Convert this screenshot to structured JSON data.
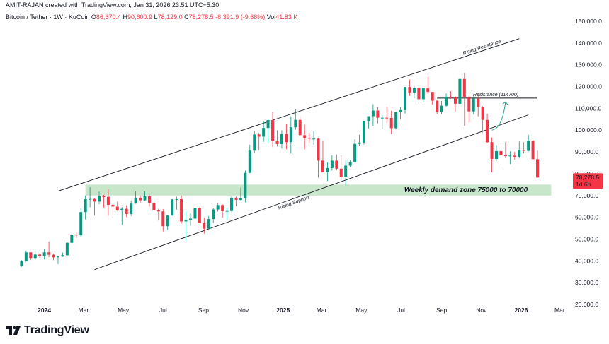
{
  "header": {
    "created_by": "AMIT-RAJAN created with TradingView.com, Jan 31, 2026 23:51 UTC+5:30"
  },
  "symbol": {
    "name": "Bitcoin / Tether · 1W · KuCoin",
    "open_label": "O",
    "open": "86,670.4",
    "high_label": "H",
    "high": "90,600.9",
    "low_label": "L",
    "low": "78,129.0",
    "close_label": "C",
    "close": "78,278.5",
    "change": "-8,391.9 (-9.68%)",
    "vol_label": "Vol",
    "vol": "41.83 K"
  },
  "price_tag": {
    "price": "78,278.5",
    "countdown": "1d 6h",
    "value": 78278.5
  },
  "colors": {
    "up": "#089981",
    "down": "#f23645",
    "zone": "#c8e6c9",
    "line": "#131722",
    "accent": "#089981"
  },
  "logo": {
    "text": "TradingView",
    "icon": "tradingview-logo-icon"
  },
  "chart_data": {
    "type": "candlestick",
    "interval": "1W",
    "ylim": [
      20000,
      150000
    ],
    "y_scale": "linear",
    "yticks": [
      {
        "value": 20000,
        "label": "20,000.0"
      },
      {
        "value": 30000,
        "label": "30,000.0"
      },
      {
        "value": 40000,
        "label": "40,000.0"
      },
      {
        "value": 50000,
        "label": "50,000.0"
      },
      {
        "value": 60000,
        "label": "60,000.0"
      },
      {
        "value": 70000,
        "label": "70,000.0"
      },
      {
        "value": 80000,
        "label": "80,000.0"
      },
      {
        "value": 90000,
        "label": "90,000.0"
      },
      {
        "value": 100000,
        "label": "100,000.0"
      },
      {
        "value": 110000,
        "label": "110,000.0"
      },
      {
        "value": 120000,
        "label": "120,000.0"
      },
      {
        "value": 130000,
        "label": "130,000.0"
      },
      {
        "value": 140000,
        "label": "140,000.0"
      },
      {
        "value": 150000,
        "label": "150,000.0"
      }
    ],
    "xticks": [
      {
        "date": "2024-01-01",
        "label": "2024",
        "bold": true
      },
      {
        "date": "2024-03-01",
        "label": "Mar"
      },
      {
        "date": "2024-05-01",
        "label": "May"
      },
      {
        "date": "2024-07-01",
        "label": "Jul"
      },
      {
        "date": "2024-09-01",
        "label": "Sep"
      },
      {
        "date": "2024-11-01",
        "label": "Nov"
      },
      {
        "date": "2025-01-01",
        "label": "2025",
        "bold": true
      },
      {
        "date": "2025-03-01",
        "label": "Mar"
      },
      {
        "date": "2025-05-01",
        "label": "May"
      },
      {
        "date": "2025-07-01",
        "label": "Jul"
      },
      {
        "date": "2025-09-01",
        "label": "Sep"
      },
      {
        "date": "2025-11-01",
        "label": "Nov"
      },
      {
        "date": "2026-01-01",
        "label": "2026",
        "bold": true
      },
      {
        "date": "2026-03-01",
        "label": "Mar"
      }
    ],
    "candles": [
      {
        "date": "2023-11-27",
        "o": 37700,
        "h": 40300,
        "l": 37300,
        "c": 39900
      },
      {
        "date": "2023-12-04",
        "o": 39900,
        "h": 44700,
        "l": 39600,
        "c": 43900
      },
      {
        "date": "2023-12-11",
        "o": 43900,
        "h": 43900,
        "l": 40500,
        "c": 41300
      },
      {
        "date": "2023-12-18",
        "o": 41300,
        "h": 44300,
        "l": 40600,
        "c": 42900
      },
      {
        "date": "2023-12-25",
        "o": 42900,
        "h": 43500,
        "l": 41400,
        "c": 42200
      },
      {
        "date": "2024-01-01",
        "o": 42200,
        "h": 45500,
        "l": 40700,
        "c": 43900
      },
      {
        "date": "2024-01-08",
        "o": 43900,
        "h": 48900,
        "l": 41700,
        "c": 42800
      },
      {
        "date": "2024-01-15",
        "o": 42800,
        "h": 43200,
        "l": 40300,
        "c": 41600
      },
      {
        "date": "2024-01-22",
        "o": 41600,
        "h": 42300,
        "l": 38500,
        "c": 42000
      },
      {
        "date": "2024-01-29",
        "o": 42000,
        "h": 43800,
        "l": 41800,
        "c": 42600
      },
      {
        "date": "2024-02-05",
        "o": 42600,
        "h": 48600,
        "l": 42300,
        "c": 48300
      },
      {
        "date": "2024-02-12",
        "o": 48300,
        "h": 52800,
        "l": 47600,
        "c": 52100
      },
      {
        "date": "2024-02-19",
        "o": 52100,
        "h": 52900,
        "l": 50600,
        "c": 51700
      },
      {
        "date": "2024-02-26",
        "o": 51700,
        "h": 64000,
        "l": 50900,
        "c": 62400
      },
      {
        "date": "2024-03-04",
        "o": 62400,
        "h": 70000,
        "l": 59000,
        "c": 68300
      },
      {
        "date": "2024-03-11",
        "o": 68300,
        "h": 73800,
        "l": 64600,
        "c": 68400
      },
      {
        "date": "2024-03-18",
        "o": 68400,
        "h": 68900,
        "l": 60800,
        "c": 67200
      },
      {
        "date": "2024-03-25",
        "o": 67200,
        "h": 71800,
        "l": 66000,
        "c": 69600
      },
      {
        "date": "2024-04-01",
        "o": 69600,
        "h": 70300,
        "l": 64500,
        "c": 69400
      },
      {
        "date": "2024-04-08",
        "o": 69400,
        "h": 72800,
        "l": 60700,
        "c": 65700
      },
      {
        "date": "2024-04-15",
        "o": 65700,
        "h": 66900,
        "l": 59600,
        "c": 64900
      },
      {
        "date": "2024-04-22",
        "o": 64900,
        "h": 67200,
        "l": 62900,
        "c": 63100
      },
      {
        "date": "2024-04-29",
        "o": 63100,
        "h": 64700,
        "l": 56500,
        "c": 63900
      },
      {
        "date": "2024-05-06",
        "o": 63900,
        "h": 65500,
        "l": 60100,
        "c": 61500
      },
      {
        "date": "2024-05-13",
        "o": 61500,
        "h": 67700,
        "l": 60600,
        "c": 66300
      },
      {
        "date": "2024-05-20",
        "o": 66300,
        "h": 71900,
        "l": 66200,
        "c": 69000
      },
      {
        "date": "2024-05-27",
        "o": 69000,
        "h": 70000,
        "l": 66700,
        "c": 67800
      },
      {
        "date": "2024-06-03",
        "o": 67800,
        "h": 71900,
        "l": 67500,
        "c": 69600
      },
      {
        "date": "2024-06-10",
        "o": 69600,
        "h": 70100,
        "l": 64900,
        "c": 66600
      },
      {
        "date": "2024-06-17",
        "o": 66600,
        "h": 66900,
        "l": 63400,
        "c": 63200
      },
      {
        "date": "2024-06-24",
        "o": 63200,
        "h": 63900,
        "l": 58500,
        "c": 62700
      },
      {
        "date": "2024-07-01",
        "o": 62700,
        "h": 63800,
        "l": 53500,
        "c": 55900
      },
      {
        "date": "2024-07-08",
        "o": 55900,
        "h": 61000,
        "l": 54300,
        "c": 60800
      },
      {
        "date": "2024-07-15",
        "o": 60800,
        "h": 68400,
        "l": 60600,
        "c": 68200
      },
      {
        "date": "2024-07-22",
        "o": 68200,
        "h": 69400,
        "l": 63500,
        "c": 68300
      },
      {
        "date": "2024-07-29",
        "o": 68300,
        "h": 70000,
        "l": 57100,
        "c": 58100
      },
      {
        "date": "2024-08-05",
        "o": 58100,
        "h": 62700,
        "l": 49100,
        "c": 58700
      },
      {
        "date": "2024-08-12",
        "o": 58700,
        "h": 61800,
        "l": 56100,
        "c": 59400
      },
      {
        "date": "2024-08-19",
        "o": 59400,
        "h": 65100,
        "l": 57800,
        "c": 64200
      },
      {
        "date": "2024-08-26",
        "o": 64200,
        "h": 64500,
        "l": 57200,
        "c": 57300
      },
      {
        "date": "2024-09-02",
        "o": 57300,
        "h": 59800,
        "l": 52500,
        "c": 54800
      },
      {
        "date": "2024-09-09",
        "o": 54800,
        "h": 60600,
        "l": 54600,
        "c": 59200
      },
      {
        "date": "2024-09-16",
        "o": 59200,
        "h": 64100,
        "l": 57500,
        "c": 63600
      },
      {
        "date": "2024-09-23",
        "o": 63600,
        "h": 66500,
        "l": 62700,
        "c": 65600
      },
      {
        "date": "2024-09-30",
        "o": 65600,
        "h": 66000,
        "l": 59800,
        "c": 62800
      },
      {
        "date": "2024-10-07",
        "o": 62800,
        "h": 64500,
        "l": 58900,
        "c": 62900
      },
      {
        "date": "2024-10-14",
        "o": 62900,
        "h": 69500,
        "l": 62400,
        "c": 69000
      },
      {
        "date": "2024-10-21",
        "o": 69000,
        "h": 69500,
        "l": 65100,
        "c": 68000
      },
      {
        "date": "2024-10-28",
        "o": 68000,
        "h": 73600,
        "l": 67500,
        "c": 68800
      },
      {
        "date": "2024-11-04",
        "o": 68800,
        "h": 81500,
        "l": 66800,
        "c": 80400
      },
      {
        "date": "2024-11-11",
        "o": 80400,
        "h": 93300,
        "l": 80200,
        "c": 90600
      },
      {
        "date": "2024-11-18",
        "o": 90600,
        "h": 99600,
        "l": 89500,
        "c": 98000
      },
      {
        "date": "2024-11-25",
        "o": 98000,
        "h": 98700,
        "l": 90800,
        "c": 97000
      },
      {
        "date": "2024-12-02",
        "o": 97000,
        "h": 104000,
        "l": 94600,
        "c": 101000
      },
      {
        "date": "2024-12-09",
        "o": 101000,
        "h": 105000,
        "l": 94300,
        "c": 104600
      },
      {
        "date": "2024-12-16",
        "o": 104600,
        "h": 108300,
        "l": 92200,
        "c": 95200
      },
      {
        "date": "2024-12-23",
        "o": 95200,
        "h": 99900,
        "l": 92500,
        "c": 93600
      },
      {
        "date": "2024-12-30",
        "o": 93600,
        "h": 99900,
        "l": 91600,
        "c": 98300
      },
      {
        "date": "2025-01-06",
        "o": 98300,
        "h": 102700,
        "l": 91200,
        "c": 94500
      },
      {
        "date": "2025-01-13",
        "o": 94500,
        "h": 106300,
        "l": 89300,
        "c": 101300
      },
      {
        "date": "2025-01-20",
        "o": 101300,
        "h": 109600,
        "l": 100200,
        "c": 104700
      },
      {
        "date": "2025-01-27",
        "o": 104700,
        "h": 106400,
        "l": 97700,
        "c": 97700
      },
      {
        "date": "2025-02-03",
        "o": 97700,
        "h": 102500,
        "l": 91200,
        "c": 96400
      },
      {
        "date": "2025-02-10",
        "o": 96400,
        "h": 98800,
        "l": 94100,
        "c": 96100
      },
      {
        "date": "2025-02-17",
        "o": 96100,
        "h": 99500,
        "l": 93300,
        "c": 96100
      },
      {
        "date": "2025-02-24",
        "o": 96100,
        "h": 96400,
        "l": 78200,
        "c": 86000
      },
      {
        "date": "2025-03-03",
        "o": 86000,
        "h": 95000,
        "l": 82000,
        "c": 80700
      },
      {
        "date": "2025-03-10",
        "o": 80700,
        "h": 85300,
        "l": 76600,
        "c": 82600
      },
      {
        "date": "2025-03-17",
        "o": 82600,
        "h": 88400,
        "l": 81500,
        "c": 86000
      },
      {
        "date": "2025-03-24",
        "o": 86000,
        "h": 88800,
        "l": 81600,
        "c": 82300
      },
      {
        "date": "2025-03-31",
        "o": 82300,
        "h": 88500,
        "l": 77100,
        "c": 78400
      },
      {
        "date": "2025-04-07",
        "o": 78400,
        "h": 86100,
        "l": 74500,
        "c": 83700
      },
      {
        "date": "2025-04-14",
        "o": 83700,
        "h": 86400,
        "l": 83000,
        "c": 85200
      },
      {
        "date": "2025-04-21",
        "o": 85200,
        "h": 95800,
        "l": 85100,
        "c": 93700
      },
      {
        "date": "2025-04-28",
        "o": 93700,
        "h": 97900,
        "l": 92800,
        "c": 94300
      },
      {
        "date": "2025-05-05",
        "o": 94300,
        "h": 104300,
        "l": 93400,
        "c": 104100
      },
      {
        "date": "2025-05-12",
        "o": 104100,
        "h": 105800,
        "l": 100800,
        "c": 106400
      },
      {
        "date": "2025-05-19",
        "o": 106400,
        "h": 111900,
        "l": 102000,
        "c": 109000
      },
      {
        "date": "2025-05-26",
        "o": 109000,
        "h": 110500,
        "l": 103100,
        "c": 105700
      },
      {
        "date": "2025-06-02",
        "o": 105700,
        "h": 106800,
        "l": 100300,
        "c": 105700
      },
      {
        "date": "2025-06-09",
        "o": 105700,
        "h": 110600,
        "l": 103300,
        "c": 105600
      },
      {
        "date": "2025-06-16",
        "o": 105600,
        "h": 108900,
        "l": 98200,
        "c": 100900
      },
      {
        "date": "2025-06-23",
        "o": 100900,
        "h": 108500,
        "l": 100300,
        "c": 108300
      },
      {
        "date": "2025-06-30",
        "o": 108300,
        "h": 110500,
        "l": 105100,
        "c": 109200
      },
      {
        "date": "2025-07-07",
        "o": 109200,
        "h": 119500,
        "l": 107600,
        "c": 119800
      },
      {
        "date": "2025-07-14",
        "o": 119800,
        "h": 123200,
        "l": 115700,
        "c": 117300
      },
      {
        "date": "2025-07-21",
        "o": 117300,
        "h": 120200,
        "l": 114700,
        "c": 119400
      },
      {
        "date": "2025-07-28",
        "o": 119400,
        "h": 119800,
        "l": 112000,
        "c": 114200
      },
      {
        "date": "2025-08-04",
        "o": 114200,
        "h": 119300,
        "l": 112700,
        "c": 119300
      },
      {
        "date": "2025-08-11",
        "o": 119300,
        "h": 124500,
        "l": 116800,
        "c": 117500
      },
      {
        "date": "2025-08-18",
        "o": 117500,
        "h": 117600,
        "l": 111700,
        "c": 113500
      },
      {
        "date": "2025-08-25",
        "o": 113500,
        "h": 113600,
        "l": 107300,
        "c": 108300
      },
      {
        "date": "2025-09-01",
        "o": 108300,
        "h": 113400,
        "l": 107300,
        "c": 111200
      },
      {
        "date": "2025-09-08",
        "o": 111200,
        "h": 116800,
        "l": 110600,
        "c": 115300
      },
      {
        "date": "2025-09-15",
        "o": 115300,
        "h": 117900,
        "l": 114400,
        "c": 115200
      },
      {
        "date": "2025-09-22",
        "o": 115200,
        "h": 115500,
        "l": 108600,
        "c": 112100
      },
      {
        "date": "2025-09-29",
        "o": 112100,
        "h": 125700,
        "l": 112300,
        "c": 123500
      },
      {
        "date": "2025-10-06",
        "o": 123500,
        "h": 126200,
        "l": 102000,
        "c": 115200
      },
      {
        "date": "2025-10-13",
        "o": 115200,
        "h": 115900,
        "l": 103500,
        "c": 108600
      },
      {
        "date": "2025-10-20",
        "o": 108600,
        "h": 115500,
        "l": 107200,
        "c": 114500
      },
      {
        "date": "2025-10-27",
        "o": 114500,
        "h": 116400,
        "l": 106300,
        "c": 110500
      },
      {
        "date": "2025-11-03",
        "o": 110500,
        "h": 111000,
        "l": 98900,
        "c": 104700
      },
      {
        "date": "2025-11-10",
        "o": 104700,
        "h": 107500,
        "l": 94000,
        "c": 94500
      },
      {
        "date": "2025-11-17",
        "o": 94500,
        "h": 96600,
        "l": 80600,
        "c": 86800
      },
      {
        "date": "2025-11-24",
        "o": 86800,
        "h": 93100,
        "l": 86000,
        "c": 90400
      },
      {
        "date": "2025-12-01",
        "o": 90400,
        "h": 94100,
        "l": 83800,
        "c": 88400
      },
      {
        "date": "2025-12-08",
        "o": 88400,
        "h": 94600,
        "l": 87500,
        "c": 88200
      },
      {
        "date": "2025-12-15",
        "o": 88200,
        "h": 90300,
        "l": 84400,
        "c": 88300
      },
      {
        "date": "2025-12-22",
        "o": 88300,
        "h": 90000,
        "l": 86500,
        "c": 87800
      },
      {
        "date": "2025-12-29",
        "o": 87800,
        "h": 94800,
        "l": 87000,
        "c": 90900
      },
      {
        "date": "2026-01-05",
        "o": 90900,
        "h": 94500,
        "l": 89300,
        "c": 90500
      },
      {
        "date": "2026-01-12",
        "o": 90500,
        "h": 97900,
        "l": 90200,
        "c": 95100
      },
      {
        "date": "2026-01-19",
        "o": 95100,
        "h": 95500,
        "l": 86100,
        "c": 86700
      },
      {
        "date": "2026-01-26",
        "o": 86670.4,
        "h": 90600.9,
        "l": 78129.0,
        "c": 78278.5
      }
    ],
    "annotations": {
      "rising_resistance": {
        "label": "Rising Resistance",
        "from": {
          "date": "2024-01-22",
          "price": 72000
        },
        "to": {
          "date": "2025-12-29",
          "price": 142000
        }
      },
      "rising_support": {
        "label": "Rising Support",
        "from": {
          "date": "2024-03-18",
          "price": 36000
        },
        "to": {
          "date": "2026-01-12",
          "price": 107000
        }
      },
      "resistance_level": {
        "label": "Resistance (114700)",
        "price": 114700,
        "from": "2025-08-25",
        "to": "2026-01-26"
      },
      "demand_zone": {
        "label": "Weekly demand zone 75000 to 70000",
        "high": 75000,
        "low": 70000,
        "from": "2024-03-04",
        "to": "2026-02-16"
      },
      "projection_arrow": {
        "from": {
          "date": "2025-11-17",
          "price": 100000
        },
        "to": {
          "date": "2025-12-08",
          "price": 113000
        }
      }
    }
  }
}
